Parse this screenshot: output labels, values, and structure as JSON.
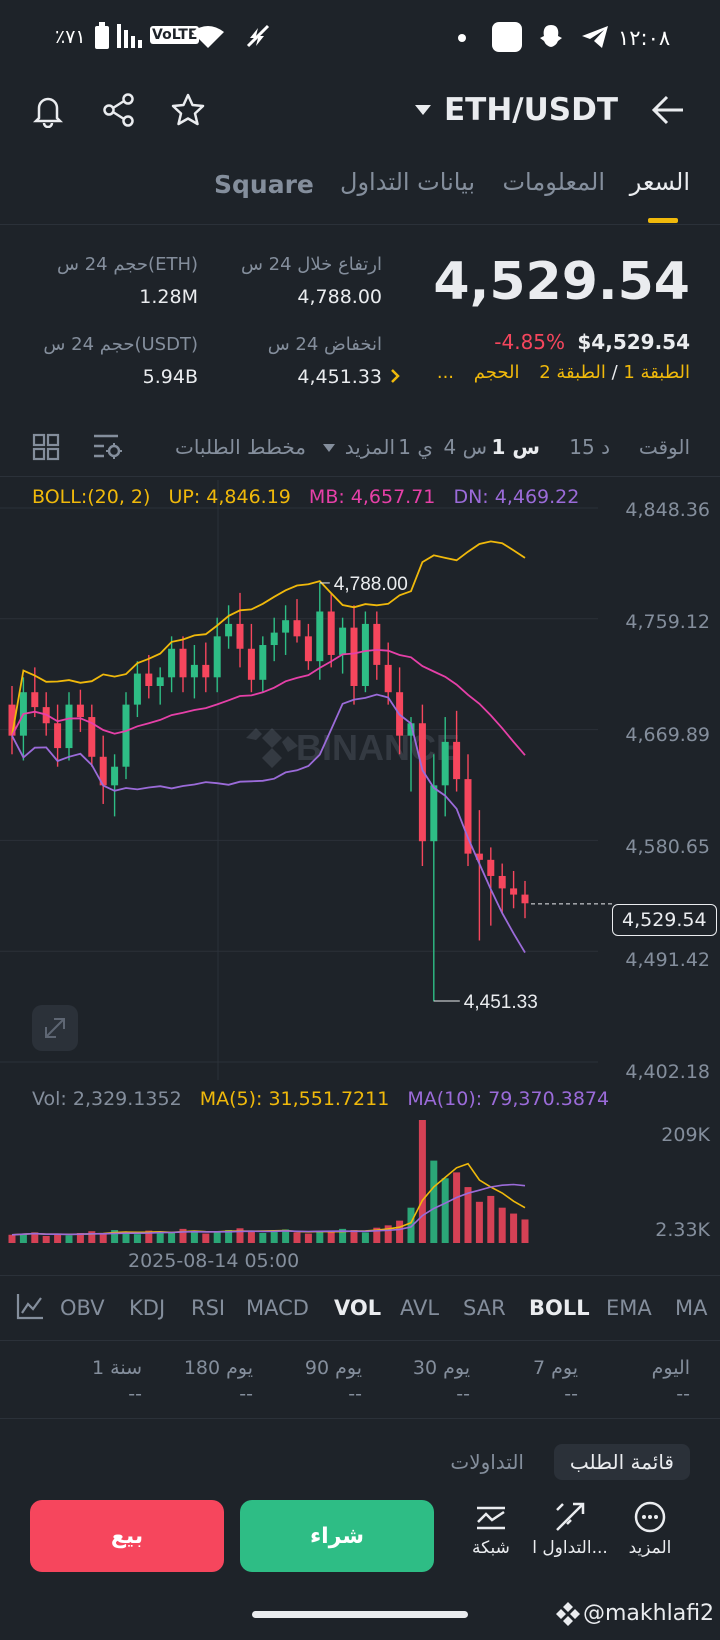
{
  "status_bar": {
    "battery": "٪٧١",
    "network": "VoLTE",
    "time": "١٢:٠٨"
  },
  "header": {
    "pair": "ETH/USDT"
  },
  "tabs": [
    {
      "label": "السعر",
      "active": true
    },
    {
      "label": "المعلومات"
    },
    {
      "label": "بيانات التداول"
    },
    {
      "label": "Square"
    }
  ],
  "price": {
    "last": "4,529.54",
    "change_pct": "-4.85%",
    "last_usd": "$4,529.54",
    "layer1": "الطبقة 1",
    "slash": "/",
    "layer2": "الطبقة 2",
    "volume_tag": "الحجم",
    "more_tag": "..."
  },
  "stats": {
    "high_label": "ارتفاع خلال 24 س",
    "high_value": "4,788.00",
    "low_label": "انخفاض 24 س",
    "low_value": "4,451.33",
    "vol_eth_label": "حجم 24 س(ETH)",
    "vol_eth_value": "1.28M",
    "vol_usdt_label": "حجم 24 س(USDT)",
    "vol_usdt_value": "5.94B"
  },
  "timeframe": {
    "time_label": "الوقت",
    "options": [
      "15 د",
      "1 س",
      "4 س",
      "1 ي"
    ],
    "selected": "1 س",
    "more": "المزيد",
    "depth": "مخطط الطلبات"
  },
  "boll": {
    "label": "BOLL:(20, 2)",
    "up": "UP: 4,846.19",
    "mb": "MB: 4,657.71",
    "dn": "DN: 4,469.22"
  },
  "price_axis": [
    "4,848.36",
    "4,759.12",
    "4,669.89",
    "4,580.65",
    "4,491.42",
    "4,402.18"
  ],
  "current_price_tag": "4,529.54",
  "annotations": {
    "high": "4,788.00",
    "low": "4,451.33"
  },
  "watermark": "BINANCE",
  "volume": {
    "vol": "Vol: 2,329.1352",
    "ma5": "MA(5): 31,551.7211",
    "ma10": "MA(10): 79,370.3874",
    "axis_top": "209K",
    "axis_bottom": "2.33K",
    "date": "2025-08-14 05:00"
  },
  "indicators": [
    "MA",
    "EMA",
    "BOLL",
    "SAR",
    "AVL",
    "VOL",
    "MACD",
    "RSI",
    "KDJ",
    "OBV"
  ],
  "indicators_active": [
    "BOLL",
    "VOL"
  ],
  "periods": [
    {
      "label": "اليوم",
      "value": "--"
    },
    {
      "label": "7 يوم",
      "value": "--"
    },
    {
      "label": "30 يوم",
      "value": "--"
    },
    {
      "label": "90 يوم",
      "value": "--"
    },
    {
      "label": "180 يوم",
      "value": "--"
    },
    {
      "label": "1 سنة",
      "value": "--"
    }
  ],
  "book_tabs": {
    "order_book": "قائمة الطلب",
    "trades": "التداولات"
  },
  "bottom": {
    "more": "المزيد",
    "trade": "التداول ا...",
    "grid": "شبكة",
    "buy": "شراء",
    "sell": "بيع"
  },
  "watermark_user": "@makhlafi2",
  "colors": {
    "bg": "#1e2329",
    "green": "#2ebd85",
    "red": "#f6465d",
    "gold": "#f0b90b",
    "pink": "#e640a8",
    "purple": "#9b6bd9"
  },
  "chart_data": {
    "type": "candlestick",
    "symbol": "ETH/USDT",
    "interval": "1 س",
    "ylim": [
      4402.18,
      4848.36
    ],
    "y_ticks": [
      4848.36,
      4759.12,
      4669.89,
      4580.65,
      4491.42,
      4402.18
    ],
    "candles": [
      [
        4690,
        4705,
        4650,
        4665
      ],
      [
        4665,
        4712,
        4645,
        4700
      ],
      [
        4700,
        4720,
        4680,
        4688
      ],
      [
        4688,
        4700,
        4665,
        4675
      ],
      [
        4675,
        4690,
        4640,
        4655
      ],
      [
        4655,
        4700,
        4645,
        4690
      ],
      [
        4690,
        4702,
        4668,
        4680
      ],
      [
        4680,
        4690,
        4640,
        4648
      ],
      [
        4648,
        4665,
        4610,
        4625
      ],
      [
        4625,
        4650,
        4600,
        4640
      ],
      [
        4640,
        4700,
        4630,
        4690
      ],
      [
        4690,
        4725,
        4680,
        4715
      ],
      [
        4715,
        4730,
        4695,
        4705
      ],
      [
        4705,
        4720,
        4690,
        4712
      ],
      [
        4712,
        4745,
        4700,
        4735
      ],
      [
        4735,
        4745,
        4700,
        4712
      ],
      [
        4712,
        4738,
        4695,
        4722
      ],
      [
        4722,
        4740,
        4700,
        4712
      ],
      [
        4712,
        4760,
        4700,
        4745
      ],
      [
        4745,
        4770,
        4735,
        4755
      ],
      [
        4755,
        4780,
        4720,
        4735
      ],
      [
        4735,
        4755,
        4700,
        4710
      ],
      [
        4710,
        4745,
        4700,
        4738
      ],
      [
        4738,
        4760,
        4725,
        4748
      ],
      [
        4748,
        4770,
        4730,
        4758
      ],
      [
        4758,
        4775,
        4740,
        4745
      ],
      [
        4745,
        4755,
        4718,
        4725
      ],
      [
        4725,
        4788,
        4710,
        4765
      ],
      [
        4765,
        4780,
        4720,
        4730
      ],
      [
        4730,
        4760,
        4715,
        4752
      ],
      [
        4752,
        4770,
        4690,
        4705
      ],
      [
        4705,
        4765,
        4700,
        4755
      ],
      [
        4755,
        4765,
        4710,
        4722
      ],
      [
        4722,
        4740,
        4690,
        4700
      ],
      [
        4700,
        4720,
        4650,
        4665
      ],
      [
        4665,
        4680,
        4620,
        4675
      ],
      [
        4675,
        4690,
        4560,
        4580
      ],
      [
        4580,
        4650,
        4451,
        4625
      ],
      [
        4625,
        4680,
        4600,
        4660
      ],
      [
        4660,
        4685,
        4620,
        4630
      ],
      [
        4630,
        4650,
        4560,
        4570
      ],
      [
        4570,
        4605,
        4500,
        4565
      ],
      [
        4565,
        4575,
        4512,
        4552
      ],
      [
        4552,
        4562,
        4522,
        4542
      ],
      [
        4542,
        4556,
        4526,
        4537
      ],
      [
        4537,
        4548,
        4518,
        4530
      ]
    ],
    "bollinger": {
      "up": 4846.19,
      "mb": 4657.71,
      "dn": 4469.22
    },
    "annotations": [
      {
        "label": "4,788.00",
        "value": 4788.0
      },
      {
        "label": "4,451.33",
        "value": 4451.33
      }
    ],
    "current_price": 4529.54,
    "volume_ylim": [
      2.33,
      209
    ],
    "volume_unit": "K",
    "volume_values": [
      14,
      16,
      18,
      12,
      15,
      13,
      17,
      20,
      16,
      22,
      18,
      15,
      21,
      19,
      17,
      24,
      20,
      16,
      18,
      22,
      25,
      19,
      17,
      21,
      23,
      18,
      16,
      20,
      19,
      24,
      22,
      18,
      26,
      30,
      38,
      60,
      209,
      140,
      110,
      120,
      95,
      70,
      80,
      60,
      50,
      40
    ]
  }
}
